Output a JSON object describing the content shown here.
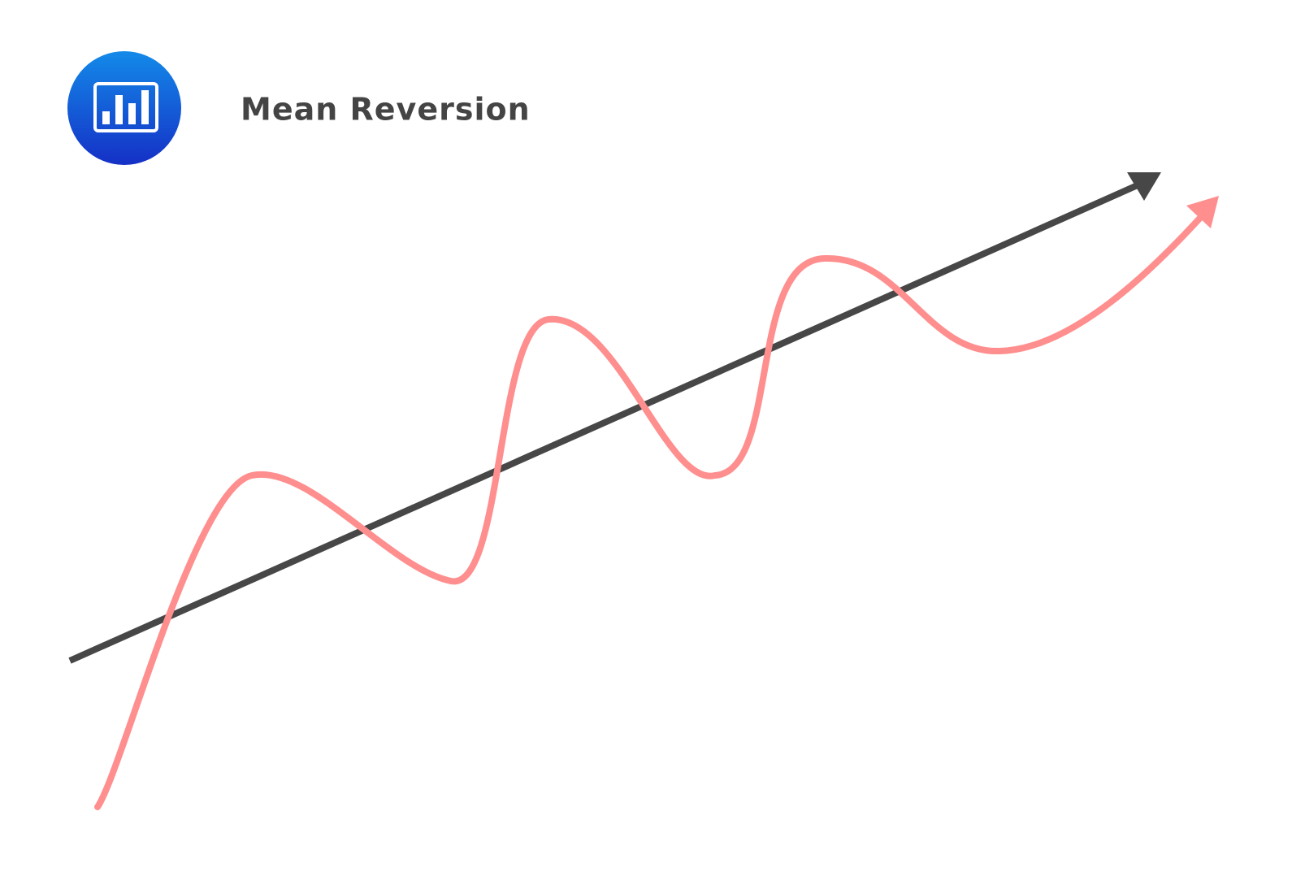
{
  "header": {
    "title": "Mean Reversion"
  }
}
